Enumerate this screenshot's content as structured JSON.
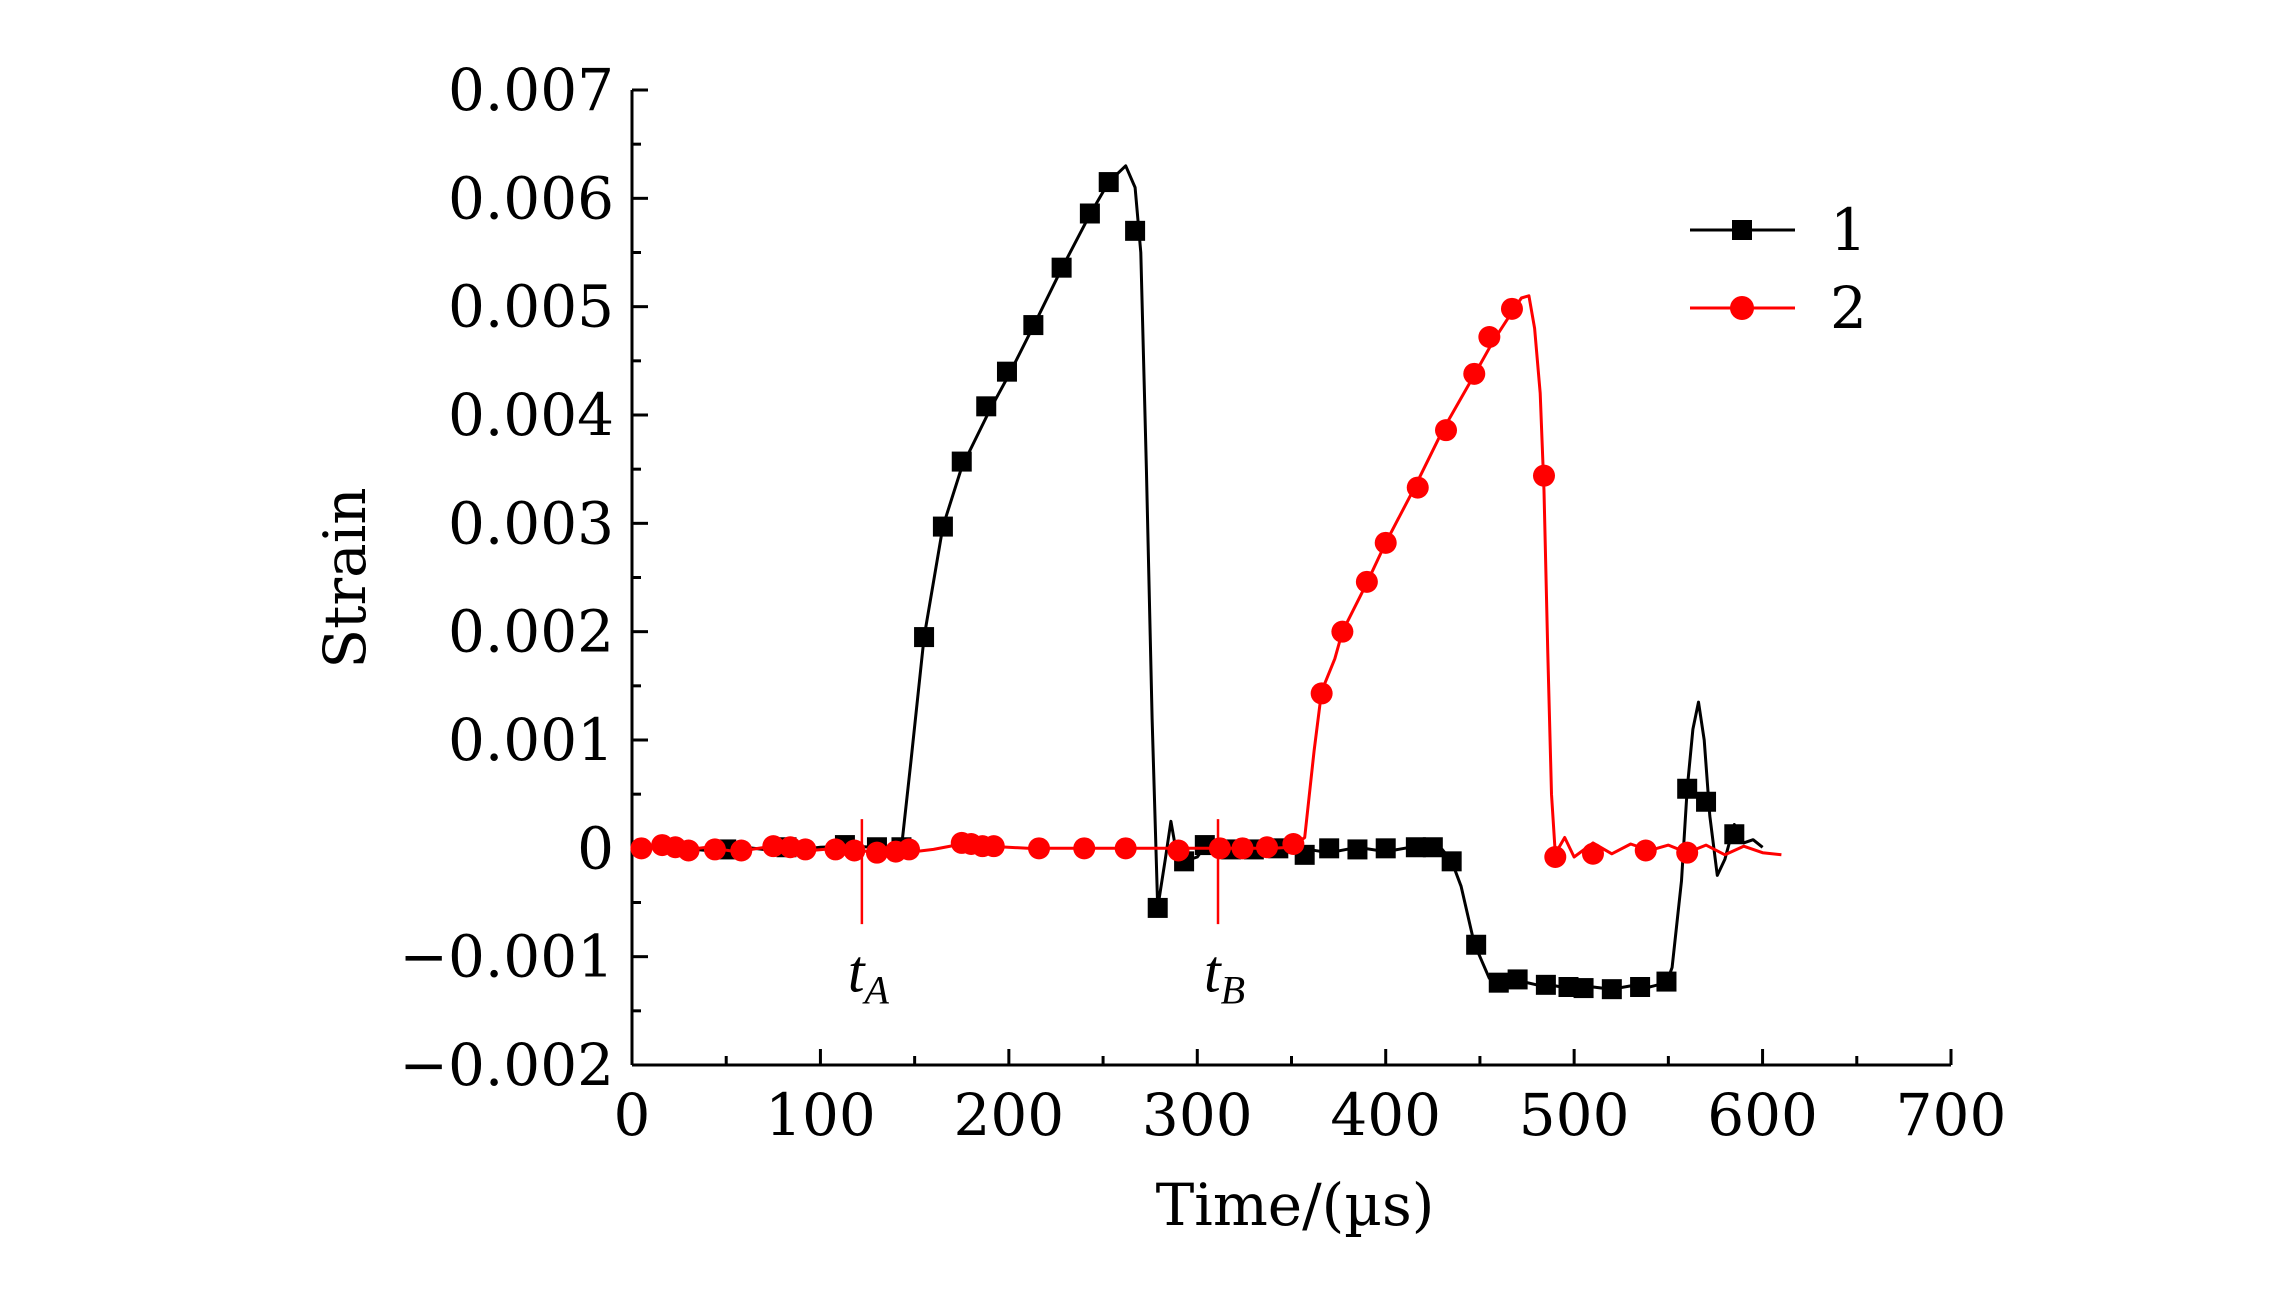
{
  "chart_data": {
    "type": "line",
    "title": "",
    "xlabel": "Time/(µs)",
    "ylabel": "Strain",
    "xlim": [
      0,
      700
    ],
    "ylim": [
      -0.002,
      0.007
    ],
    "x_ticks": [
      "0",
      "100",
      "200",
      "300",
      "400",
      "500",
      "600",
      "700"
    ],
    "y_ticks": [
      "−0.002",
      "−0.001",
      "0",
      "0.001",
      "0.002",
      "0.003",
      "0.004",
      "0.005",
      "0.006",
      "0.007"
    ],
    "grid": false,
    "legend_position": "top-right",
    "series": [
      {
        "name": "1",
        "color": "#000000",
        "marker": "square",
        "points": [
          [
            0,
            0
          ],
          [
            20,
            1e-05
          ],
          [
            40,
            -2e-05
          ],
          [
            60,
            1e-05
          ],
          [
            80,
            -3e-05
          ],
          [
            100,
            1e-05
          ],
          [
            115,
            2e-05
          ],
          [
            130,
            1e-05
          ],
          [
            143,
            1e-05
          ],
          [
            148,
            0.0008
          ],
          [
            155,
            0.00195
          ],
          [
            165,
            0.00297
          ],
          [
            175,
            0.00352
          ],
          [
            190,
            0.00405
          ],
          [
            200,
            0.00437
          ],
          [
            213,
            0.00482
          ],
          [
            228,
            0.00535
          ],
          [
            243,
            0.00585
          ],
          [
            253,
            0.00615
          ],
          [
            262,
            0.0063
          ],
          [
            267,
            0.0061
          ],
          [
            270,
            0.0055
          ],
          [
            273,
            0.0035
          ],
          [
            276,
            0.0012
          ],
          [
            279,
            -0.00055
          ],
          [
            283,
            -0.0001
          ],
          [
            286,
            0.00025
          ],
          [
            289,
            -5e-05
          ],
          [
            293,
            -0.00012
          ],
          [
            300,
            -8e-05
          ],
          [
            305,
            4e-05
          ],
          [
            315,
            3e-05
          ],
          [
            325,
            -2e-05
          ],
          [
            340,
            1e-05
          ],
          [
            355,
            0
          ],
          [
            370,
            -4e-05
          ],
          [
            385,
            1e-05
          ],
          [
            400,
            -3e-05
          ],
          [
            413,
            1e-05
          ],
          [
            425,
            2e-05
          ],
          [
            430,
            -1e-05
          ],
          [
            435,
            -0.00012
          ],
          [
            440,
            -0.00035
          ],
          [
            447,
            -0.00088
          ],
          [
            455,
            -0.0012
          ],
          [
            462,
            -0.00125
          ],
          [
            470,
            -0.00122
          ],
          [
            480,
            -0.00126
          ],
          [
            490,
            -0.00127
          ],
          [
            500,
            -0.0013
          ],
          [
            510,
            -0.00128
          ],
          [
            520,
            -0.0013
          ],
          [
            530,
            -0.00127
          ],
          [
            540,
            -0.00128
          ],
          [
            549,
            -0.00124
          ],
          [
            552,
            -0.0011
          ],
          [
            557,
            -0.0003
          ],
          [
            560,
            0.00055
          ],
          [
            563,
            0.0011
          ],
          [
            566,
            0.00135
          ],
          [
            569,
            0.001
          ],
          [
            572,
            0.0003
          ],
          [
            576,
            -0.00025
          ],
          [
            580,
            -0.0001
          ],
          [
            585,
            0.00022
          ],
          [
            590,
            5e-05
          ],
          [
            595,
            8e-05
          ],
          [
            600,
            1e-05
          ]
        ],
        "markers": [
          [
            50,
            -1e-05
          ],
          [
            82,
            1e-05
          ],
          [
            113,
            3e-05
          ],
          [
            130,
            1e-05
          ],
          [
            143,
            1e-05
          ],
          [
            155,
            0.00195
          ],
          [
            165,
            0.00297
          ],
          [
            175,
            0.00357
          ],
          [
            188,
            0.00408
          ],
          [
            199,
            0.0044
          ],
          [
            213,
            0.00483
          ],
          [
            228,
            0.00536
          ],
          [
            243,
            0.00586
          ],
          [
            253,
            0.00615
          ],
          [
            267,
            0.0057
          ],
          [
            279,
            -0.00055
          ],
          [
            293,
            -0.00012
          ],
          [
            304,
            3e-05
          ],
          [
            318,
            -1e-05
          ],
          [
            330,
            -1e-05
          ],
          [
            343,
            0
          ],
          [
            357,
            -6e-05
          ],
          [
            370,
            0
          ],
          [
            385,
            -1e-05
          ],
          [
            400,
            0
          ],
          [
            416,
            1e-05
          ],
          [
            425,
            1e-05
          ],
          [
            435,
            -0.00012
          ],
          [
            448,
            -0.00089
          ],
          [
            460,
            -0.00124
          ],
          [
            470,
            -0.00121
          ],
          [
            485,
            -0.00126
          ],
          [
            497,
            -0.00128
          ],
          [
            505,
            -0.00129
          ],
          [
            520,
            -0.0013
          ],
          [
            535,
            -0.00128
          ],
          [
            549,
            -0.00123
          ],
          [
            560,
            0.00055
          ],
          [
            570,
            0.00043
          ],
          [
            585,
            0.00013
          ]
        ]
      },
      {
        "name": "2",
        "color": "#ff0000",
        "marker": "circle",
        "points": [
          [
            0,
            1e-05
          ],
          [
            15,
            3e-05
          ],
          [
            25,
            -2e-05
          ],
          [
            40,
            1e-05
          ],
          [
            55,
            -3e-05
          ],
          [
            75,
            2e-05
          ],
          [
            95,
            -2e-05
          ],
          [
            115,
            1e-05
          ],
          [
            130,
            -5e-05
          ],
          [
            145,
            -4e-05
          ],
          [
            160,
            -1e-05
          ],
          [
            175,
            4e-05
          ],
          [
            190,
            2e-05
          ],
          [
            210,
            0
          ],
          [
            240,
            0
          ],
          [
            270,
            0
          ],
          [
            300,
            0
          ],
          [
            320,
            0
          ],
          [
            340,
            0
          ],
          [
            350,
            1e-05
          ],
          [
            357,
            0.0001
          ],
          [
            362,
            0.0009
          ],
          [
            366,
            0.00145
          ],
          [
            373,
            0.00175
          ],
          [
            377,
            0.002
          ],
          [
            390,
            0.00245
          ],
          [
            400,
            0.00282
          ],
          [
            415,
            0.00332
          ],
          [
            430,
            0.00385
          ],
          [
            447,
            0.00437
          ],
          [
            457,
            0.00468
          ],
          [
            467,
            0.00495
          ],
          [
            472,
            0.00508
          ],
          [
            476,
            0.0051
          ],
          [
            479,
            0.0048
          ],
          [
            482,
            0.0042
          ],
          [
            484,
            0.0033
          ],
          [
            486,
            0.0018
          ],
          [
            488,
            0.0005
          ],
          [
            490,
            -5e-05
          ],
          [
            495,
            0.0001
          ],
          [
            500,
            -8e-05
          ],
          [
            510,
            5e-05
          ],
          [
            520,
            -5e-05
          ],
          [
            530,
            4e-05
          ],
          [
            540,
            -2e-05
          ],
          [
            550,
            3e-05
          ],
          [
            560,
            -4e-05
          ],
          [
            570,
            3e-05
          ],
          [
            580,
            -6e-05
          ],
          [
            590,
            2e-05
          ],
          [
            600,
            -4e-05
          ],
          [
            610,
            -6e-05
          ]
        ],
        "markers": [
          [
            5,
            0
          ],
          [
            16,
            3e-05
          ],
          [
            23,
            1e-05
          ],
          [
            30,
            -2e-05
          ],
          [
            44,
            -1e-05
          ],
          [
            58,
            -2e-05
          ],
          [
            75,
            2e-05
          ],
          [
            84,
            1e-05
          ],
          [
            92,
            -1e-05
          ],
          [
            108,
            -1e-05
          ],
          [
            118,
            -2e-05
          ],
          [
            130,
            -4e-05
          ],
          [
            140,
            -3e-05
          ],
          [
            147,
            -1e-05
          ],
          [
            175,
            5e-05
          ],
          [
            180,
            4e-05
          ],
          [
            186,
            2e-05
          ],
          [
            192,
            2e-05
          ],
          [
            216,
            0
          ],
          [
            240,
            0
          ],
          [
            262,
            0
          ],
          [
            290,
            -2e-05
          ],
          [
            312,
            0
          ],
          [
            324,
            0
          ],
          [
            337,
            1e-05
          ],
          [
            351,
            4e-05
          ],
          [
            366,
            0.00143
          ],
          [
            377,
            0.002
          ],
          [
            390,
            0.00246
          ],
          [
            400,
            0.00282
          ],
          [
            417,
            0.00333
          ],
          [
            432,
            0.00386
          ],
          [
            447,
            0.00438
          ],
          [
            455,
            0.00472
          ],
          [
            467,
            0.00498
          ],
          [
            484,
            0.00344
          ],
          [
            490,
            -8e-05
          ],
          [
            510,
            -5e-05
          ],
          [
            538,
            -2e-05
          ],
          [
            560,
            -4e-05
          ]
        ]
      }
    ],
    "annotations": [
      {
        "label": "t",
        "sub": "A",
        "x": 122
      },
      {
        "label": "t",
        "sub": "B",
        "x": 311
      }
    ]
  }
}
